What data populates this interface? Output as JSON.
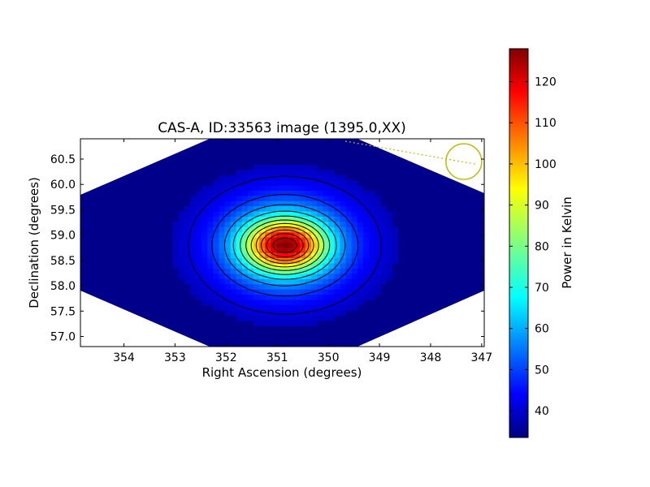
{
  "chart_data": {
    "type": "heatmap",
    "title": "CAS-A, ID:33563 image (1395.0,XX)",
    "xlabel": "Right Ascension (degrees)",
    "ylabel": "Declination (degrees)",
    "xlim": [
      354.85,
      346.95
    ],
    "ylim": [
      56.8,
      60.9
    ],
    "x_ticks": [
      354,
      353,
      352,
      351,
      350,
      349,
      348,
      347
    ],
    "y_ticks": [
      57.0,
      57.5,
      58.0,
      58.5,
      59.0,
      59.5,
      60.0,
      60.5
    ],
    "colorbar": {
      "label": "Power in Kelvin",
      "min": 33.5,
      "max": 128,
      "ticks": [
        40,
        50,
        60,
        70,
        80,
        90,
        100,
        110,
        120
      ],
      "colormap": "jet"
    },
    "peak": {
      "ra": 350.85,
      "dec": 58.8,
      "value": 128
    },
    "background_value": 36,
    "contour_levels": [
      42,
      50,
      58,
      66,
      74,
      82,
      90,
      98,
      106,
      114,
      122
    ],
    "beam_marker": {
      "ra": 347.35,
      "dec": 60.45,
      "color": "#bfbf00"
    }
  }
}
